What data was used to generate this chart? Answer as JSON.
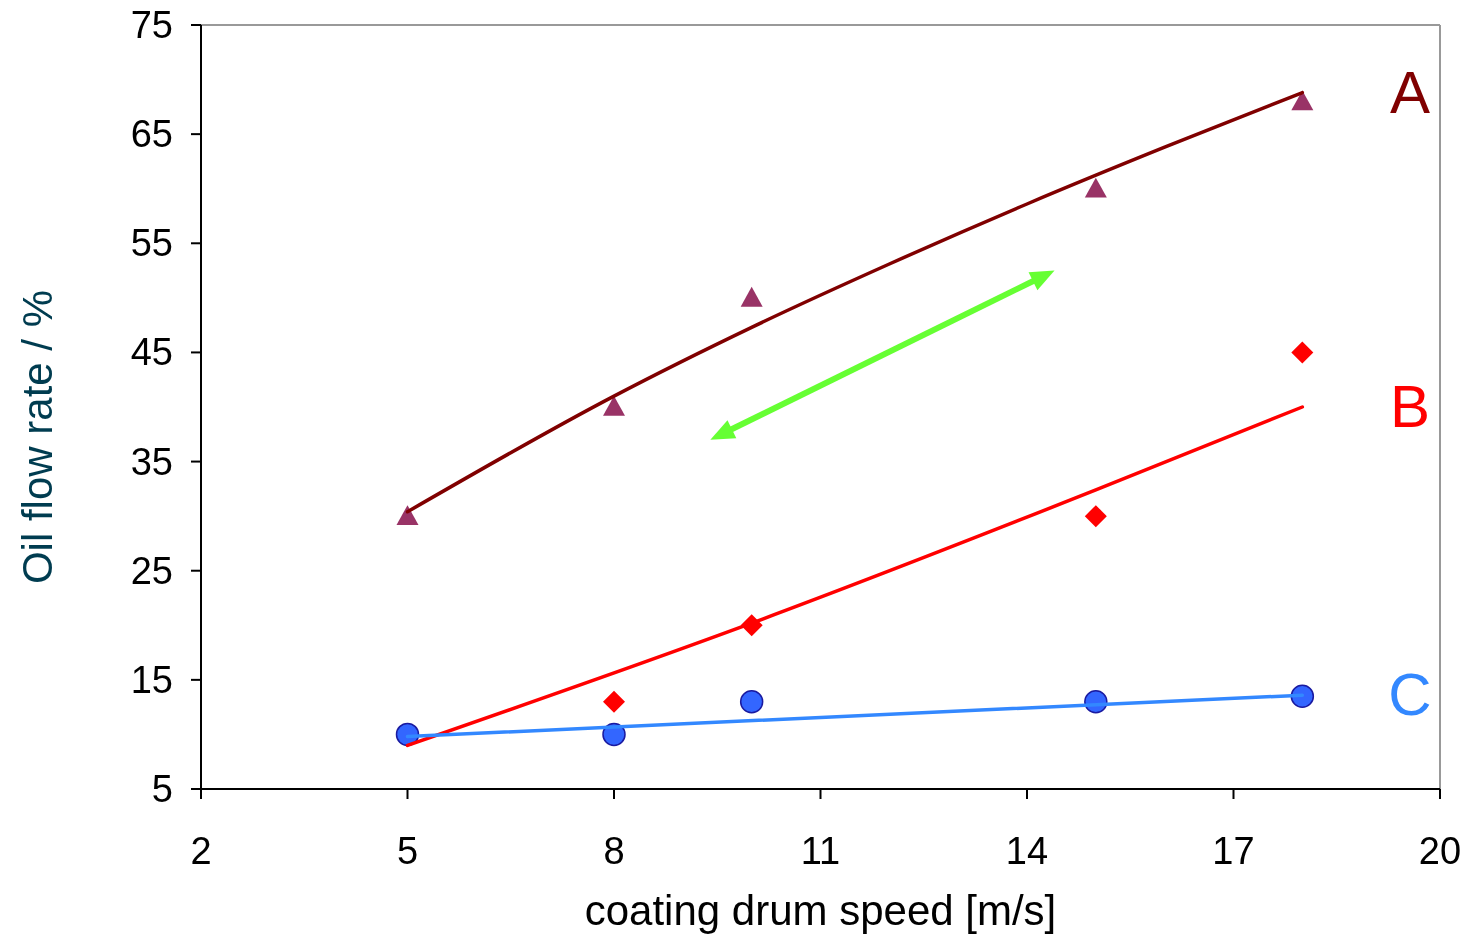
{
  "chart_data": {
    "type": "scatter",
    "xlabel": "coating drum speed [m/s]",
    "ylabel": "Oil flow rate / %",
    "xlim": [
      2,
      20
    ],
    "xticks": [
      2,
      5,
      8,
      11,
      14,
      17,
      20
    ],
    "ylim": [
      5,
      75
    ],
    "yticks": [
      5,
      15,
      25,
      35,
      45,
      55,
      65,
      75
    ],
    "grid": false,
    "series": [
      {
        "marker": "triangle",
        "color": "#993366",
        "x": [
          5,
          8,
          10,
          15,
          18
        ],
        "values": [
          30,
          40,
          50,
          60,
          68
        ]
      },
      {
        "marker": "diamond",
        "color": "#ff0000",
        "x": [
          8,
          10,
          15,
          18
        ],
        "values": [
          13,
          20,
          30,
          45
        ]
      },
      {
        "marker": "circle",
        "color": "#3366ff",
        "x": [
          5,
          8,
          10,
          15,
          18
        ],
        "values": [
          10,
          10,
          13,
          13,
          13.5
        ]
      },
      {
        "type": "line",
        "name": "A",
        "marker": "none",
        "color": "#800000",
        "x": [
          5,
          8,
          10,
          12,
          14,
          16,
          18
        ],
        "values": [
          30.4,
          41,
          47.3,
          53.1,
          58.6,
          63.8,
          68.8
        ]
      },
      {
        "type": "line",
        "name": "B",
        "marker": "none",
        "color": "#ff0000",
        "x": [
          5,
          10,
          15,
          18
        ],
        "values": [
          9,
          20.2,
          32.4,
          40
        ]
      },
      {
        "type": "line",
        "name": "C",
        "marker": "none",
        "color": "#3388ff",
        "x": [
          5,
          18
        ],
        "values": [
          9.8,
          13.6
        ]
      }
    ]
  }
}
